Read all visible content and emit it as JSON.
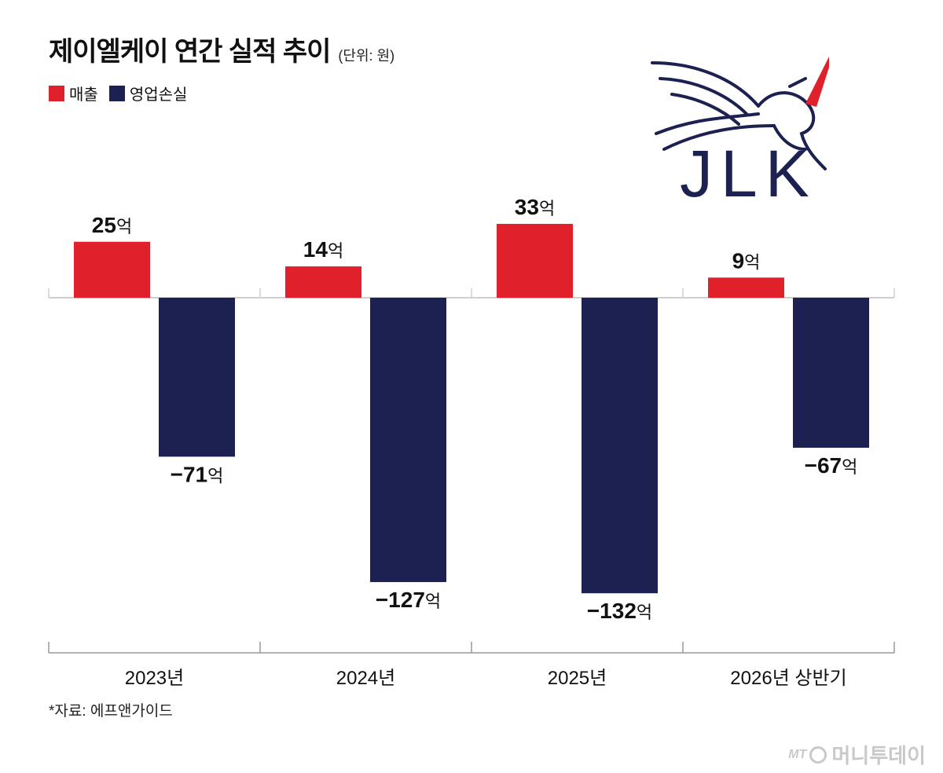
{
  "header": {
    "title": "제이엘케이 연간 실적 추이",
    "unit": "(단위: 원)"
  },
  "legend": [
    {
      "label": "매출",
      "color": "#e0202a"
    },
    {
      "label": "영업손실",
      "color": "#1c2151"
    }
  ],
  "source": "*자료: 에프앤가이드",
  "brand": {
    "mt": "MT",
    "name": "머니투데이"
  },
  "logo": {
    "text": "JLK",
    "icon": "pegasus-unicorn-icon",
    "color": "#1c2151",
    "horn_color": "#e0202a"
  },
  "chart_data": {
    "type": "bar",
    "categories": [
      "2023년",
      "2024년",
      "2025년",
      "2026년 상반기"
    ],
    "series": [
      {
        "name": "매출",
        "values": [
          25,
          14,
          33,
          9
        ],
        "color": "#e0202a",
        "labels": [
          "25",
          "14",
          "33",
          "9"
        ]
      },
      {
        "name": "영업손실",
        "values": [
          -71,
          -127,
          -132,
          -67
        ],
        "color": "#1c2151",
        "labels": [
          "−71",
          "−127",
          "−132",
          "−67"
        ]
      }
    ],
    "value_suffix": "억",
    "ylim": [
      -132,
      33
    ],
    "grid": false,
    "legend_position": "top-left"
  }
}
